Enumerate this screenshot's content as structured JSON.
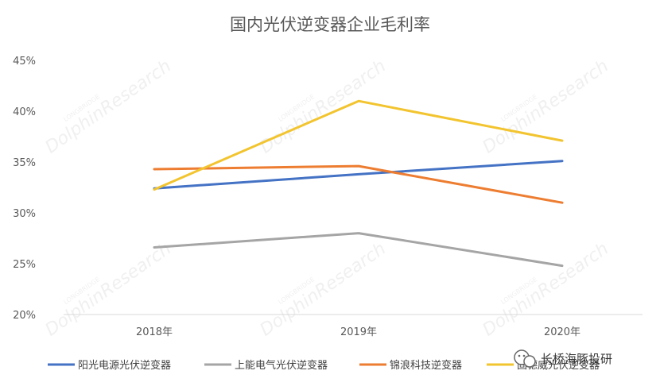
{
  "chart_data": {
    "type": "line",
    "title": "国内光伏逆变器企业毛利率",
    "categories": [
      "2018年",
      "2019年",
      "2020年"
    ],
    "ylim": [
      20,
      45
    ],
    "yticks": [
      "20%",
      "25%",
      "30%",
      "35%",
      "40%",
      "45%"
    ],
    "grid": false,
    "legend_position": "bottom",
    "series": [
      {
        "name": "阳光电源光伏逆变器",
        "color": "#4472c4",
        "values": [
          32.4,
          33.8,
          35.1
        ]
      },
      {
        "name": "上能电气光伏逆变器",
        "color": "#a5a5a5",
        "values": [
          26.6,
          28.0,
          24.8
        ]
      },
      {
        "name": "锦浪科技逆变器",
        "color": "#ed7d31",
        "values": [
          34.3,
          34.6,
          31.0
        ]
      },
      {
        "name": "固德威光伏逆变器",
        "color": "#f2c42f",
        "values": [
          32.3,
          41.0,
          37.1
        ]
      }
    ]
  },
  "watermark": {
    "text": "DolphinResearch",
    "subtext": "LONGBRIDGE"
  },
  "brand": {
    "label": "长桥海豚投研",
    "icon": "wechat-icon"
  }
}
